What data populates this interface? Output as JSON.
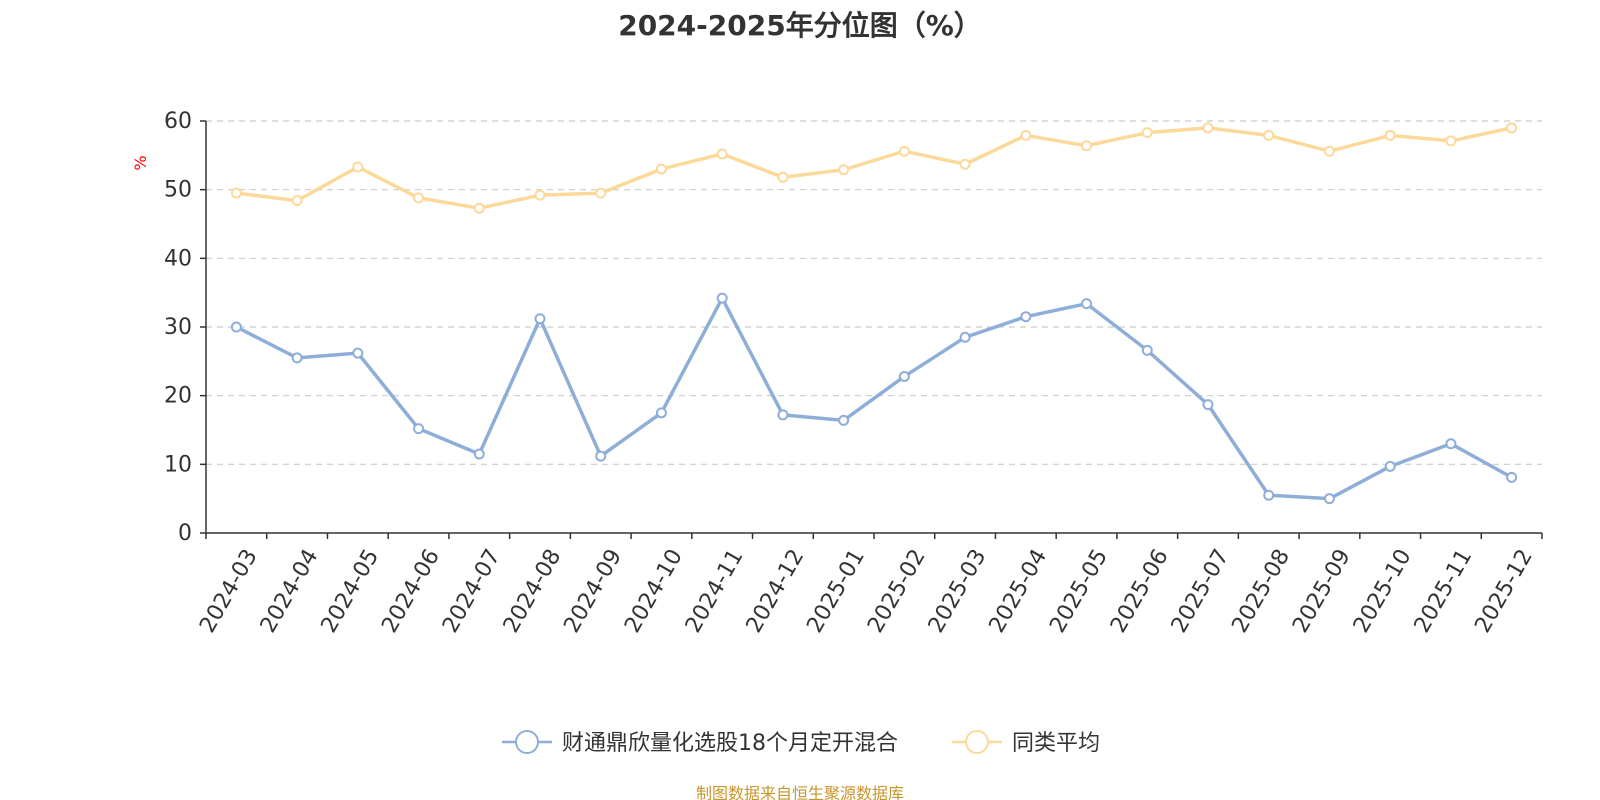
{
  "chart_data": {
    "type": "line",
    "title": "2024-2025年分位图（%）",
    "ylabel": "%",
    "xlabel": "",
    "ylim": [
      0,
      60
    ],
    "yticks": [
      0,
      10,
      20,
      30,
      40,
      50,
      60
    ],
    "grid": true,
    "legend_position": "bottom-center",
    "categories": [
      "2024-03",
      "2024-04",
      "2024-05",
      "2024-06",
      "2024-07",
      "2024-08",
      "2024-09",
      "2024-10",
      "2024-11",
      "2024-12",
      "2025-01",
      "2025-02",
      "2025-03",
      "2025-04",
      "2025-05",
      "2025-06",
      "2025-07",
      "2025-08",
      "2025-09",
      "2025-10",
      "2025-11",
      "2025-12"
    ],
    "series": [
      {
        "name": "财通鼎欣量化选股18个月定开混合",
        "color": "#8eaed8",
        "values": [
          30.0,
          25.5,
          26.2,
          15.2,
          11.5,
          31.2,
          11.2,
          17.5,
          34.2,
          17.2,
          16.4,
          22.8,
          28.5,
          31.5,
          33.4,
          26.6,
          18.7,
          5.5,
          5.0,
          9.7,
          13.0,
          8.1
        ]
      },
      {
        "name": "同类平均",
        "color": "#fcd99a",
        "values": [
          49.5,
          48.4,
          53.3,
          48.8,
          47.3,
          49.2,
          49.5,
          53.0,
          55.2,
          51.8,
          52.9,
          55.6,
          53.7,
          57.9,
          56.4,
          58.3,
          59.0,
          57.9,
          55.6,
          57.9,
          57.1,
          59.0
        ]
      }
    ]
  },
  "footer": {
    "source": "制图数据来自恒生聚源数据库"
  },
  "colors": {
    "axis": "#333333",
    "grid": "#cccccc",
    "ylabel": "#ff0000",
    "source": "#c9952c"
  }
}
